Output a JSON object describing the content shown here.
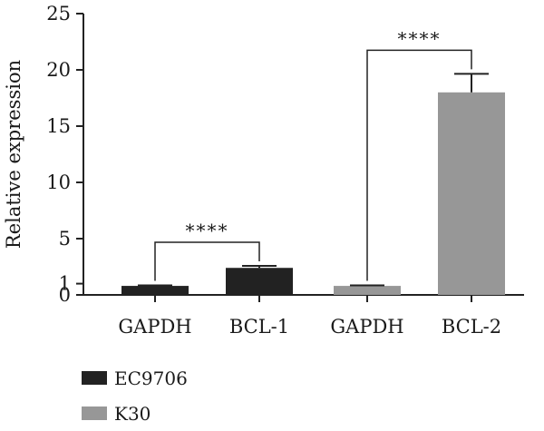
{
  "chart_data": {
    "type": "bar",
    "title": "",
    "xlabel": "",
    "ylabel": "Relative expression",
    "ylim": [
      0,
      25
    ],
    "yticks": [
      0,
      1,
      5,
      10,
      15,
      20,
      25
    ],
    "grid": false,
    "legend_position": "bottom-left",
    "categories": [
      "GAPDH",
      "BCL-1",
      "GAPDH",
      "BCL-2"
    ],
    "series": [
      {
        "name": "EC9706",
        "color": "#222222",
        "values": [
          0.8,
          2.4,
          null,
          null
        ],
        "errors": [
          0.05,
          0.18,
          null,
          null
        ]
      },
      {
        "name": "K30",
        "color": "#979797",
        "values": [
          null,
          null,
          0.8,
          18.0
        ],
        "errors": [
          null,
          null,
          0.05,
          1.65
        ]
      }
    ],
    "annotations": [
      {
        "from": "GAPDH",
        "to": "BCL-1",
        "pair": [
          0,
          1
        ],
        "label": "****"
      },
      {
        "from": "GAPDH",
        "to": "BCL-2",
        "pair": [
          2,
          3
        ],
        "label": "****"
      }
    ]
  }
}
